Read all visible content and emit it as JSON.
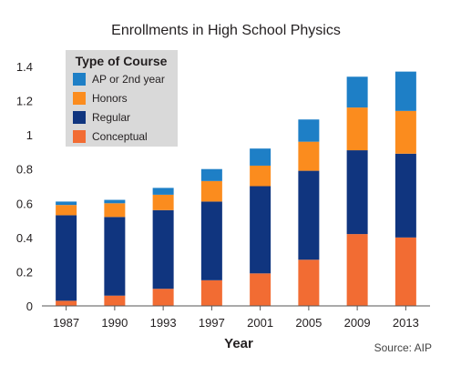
{
  "chart_data": {
    "type": "bar",
    "stacked": true,
    "title": "Enrollments in High School Physics",
    "xlabel": "Year",
    "ylabel": "",
    "ylim": [
      0,
      1.4
    ],
    "yticks": [
      "0",
      "0.2",
      "0.4",
      "0.6",
      "0.8",
      "1",
      "1.2",
      "1.4"
    ],
    "categories": [
      "1987",
      "1990",
      "1993",
      "1997",
      "2001",
      "2005",
      "2009",
      "2013"
    ],
    "legend": {
      "title": "Type of Course",
      "placement": "top-left"
    },
    "series": [
      {
        "name": "Conceptual",
        "color": "#f26c33",
        "values": [
          0.03,
          0.06,
          0.1,
          0.15,
          0.19,
          0.27,
          0.42,
          0.4
        ]
      },
      {
        "name": "Regular",
        "color": "#10357f",
        "values": [
          0.5,
          0.46,
          0.46,
          0.46,
          0.51,
          0.52,
          0.49,
          0.49
        ]
      },
      {
        "name": "Honors",
        "color": "#fb8c1e",
        "values": [
          0.06,
          0.08,
          0.09,
          0.12,
          0.12,
          0.17,
          0.25,
          0.25
        ]
      },
      {
        "name": "AP or 2nd year",
        "color": "#1e7fc6",
        "values": [
          0.02,
          0.02,
          0.04,
          0.07,
          0.1,
          0.13,
          0.18,
          0.23
        ]
      }
    ],
    "source": "Source: AIP",
    "grid": false
  }
}
